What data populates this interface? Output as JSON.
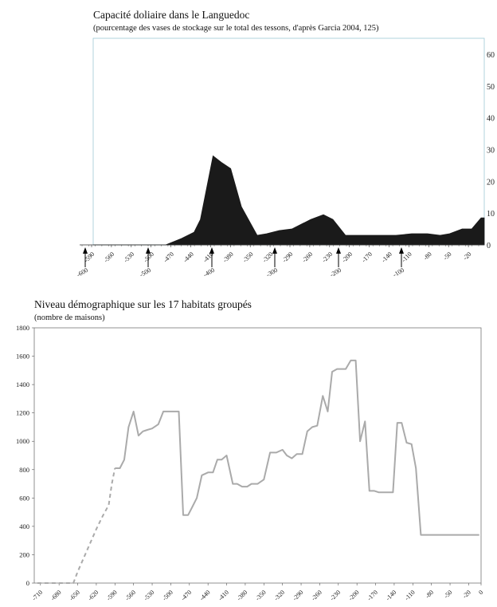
{
  "chart_data": [
    {
      "type": "area",
      "title": "Capacité doliaire dans le Languedoc",
      "subtitle": "(pourcentage des vases de stockage sur le total des tessons, d'après Garcia 2004, 125)",
      "ylim": [
        0,
        65
      ],
      "y_ticks": [
        "0",
        "10",
        "20",
        "30",
        "40",
        "50",
        "60"
      ],
      "y_axis_side": "right",
      "xlim": [
        -620,
        0
      ],
      "x_ticks": [
        "-590",
        "-560",
        "-530",
        "-500",
        "-470",
        "-440",
        "-410",
        "-380",
        "-350",
        "-320",
        "-290",
        "-260",
        "-230",
        "-200",
        "-170",
        "-140",
        "-110",
        "-80",
        "-50",
        "-20"
      ],
      "arrow_labels": [
        "-600",
        "-500",
        "-400",
        "-300",
        "-200",
        "-100"
      ],
      "series": [
        {
          "color": "#1a1a1a",
          "x": [
            -620,
            -505,
            -480,
            -460,
            -450,
            -430,
            -417,
            -402,
            -385,
            -360,
            -345,
            -325,
            -305,
            -275,
            -255,
            -240,
            -220,
            -200,
            -170,
            -140,
            -115,
            -90,
            -70,
            -55,
            -35,
            -20,
            -5,
            0
          ],
          "values": [
            0,
            0,
            2,
            4,
            8,
            28,
            26,
            24,
            12,
            3,
            3.5,
            4.5,
            5,
            8,
            9.5,
            8,
            3,
            3,
            3,
            3,
            3.5,
            3.5,
            3,
            3.5,
            5,
            5,
            8.5,
            8.5
          ]
        }
      ]
    },
    {
      "type": "line",
      "title": "Niveau démographique sur les 17 habitats groupés",
      "subtitle": "(nombre de maisons)",
      "ylim": [
        0,
        1800
      ],
      "y_ticks": [
        "0",
        "200",
        "400",
        "600",
        "800",
        "1000",
        "1200",
        "1400",
        "1600",
        "1800"
      ],
      "xlim": [
        -720,
        0
      ],
      "x_ticks": [
        "-710",
        "-680",
        "-650",
        "-620",
        "-590",
        "-560",
        "-530",
        "-500",
        "-470",
        "-440",
        "-410",
        "-380",
        "-350",
        "-320",
        "-290",
        "-260",
        "-230",
        "-200",
        "-170",
        "-140",
        "-110",
        "-80",
        "-50",
        "-20",
        "0"
      ],
      "grid": false,
      "series": [
        {
          "color": "#aaaaaa",
          "style": "dashed",
          "x": [
            -715,
            -700,
            -680,
            -665,
            -657,
            -650,
            -640,
            -630,
            -620,
            -610,
            -600,
            -595,
            -590
          ],
          "values": [
            0,
            0,
            0,
            0,
            0,
            80,
            180,
            280,
            380,
            470,
            550,
            700,
            810
          ]
        },
        {
          "color": "#aaaaaa",
          "style": "solid",
          "x": [
            -590,
            -582,
            -575,
            -568,
            -560,
            -552,
            -545,
            -538,
            -530,
            -520,
            -512,
            -505,
            -497,
            -487,
            -480,
            -472,
            -465,
            -458,
            -450,
            -440,
            -432,
            -425,
            -418,
            -410,
            -400,
            -393,
            -385,
            -377,
            -370,
            -360,
            -350,
            -340,
            -330,
            -320,
            -313,
            -305,
            -297,
            -288,
            -280,
            -272,
            -264,
            -255,
            -247,
            -240,
            -232,
            -225,
            -218,
            -210,
            -202,
            -195,
            -187,
            -180,
            -172,
            -165,
            -158,
            -150,
            -142,
            -135,
            -128,
            -120,
            -112,
            -105,
            -97,
            -90,
            -83,
            -75,
            -67,
            -60,
            -52,
            -45,
            -37,
            -30,
            -22,
            -15,
            -8,
            -3
          ],
          "values": [
            810,
            810,
            870,
            1100,
            1210,
            1040,
            1070,
            1080,
            1090,
            1120,
            1210,
            1210,
            1210,
            1210,
            480,
            480,
            540,
            600,
            760,
            780,
            780,
            870,
            870,
            900,
            700,
            700,
            680,
            680,
            700,
            700,
            730,
            920,
            920,
            940,
            900,
            880,
            910,
            910,
            1070,
            1100,
            1110,
            1320,
            1210,
            1490,
            1510,
            1510,
            1510,
            1570,
            1570,
            1000,
            1140,
            650,
            650,
            640,
            640,
            640,
            640,
            1130,
            1130,
            990,
            980,
            810,
            340,
            340,
            340,
            340,
            340,
            340,
            340,
            340,
            340,
            340,
            340,
            340,
            340,
            340
          ]
        }
      ]
    }
  ]
}
